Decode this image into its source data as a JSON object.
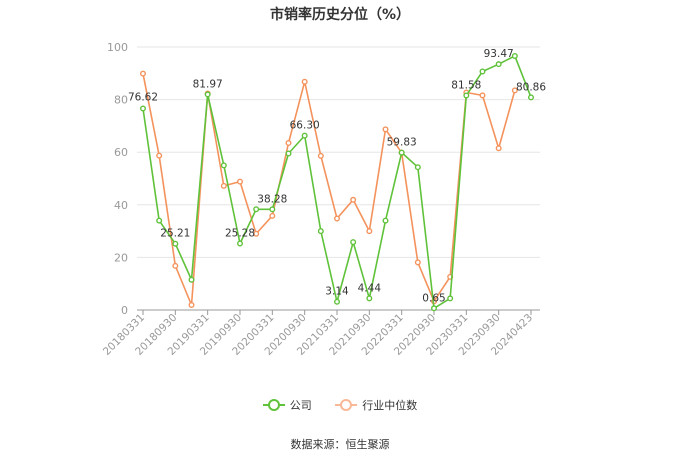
{
  "chart_data": {
    "type": "line",
    "title": "市销率历史分位（%）",
    "ylim": [
      0,
      100
    ],
    "y_ticks": [
      "0",
      "20",
      "40",
      "60",
      "80",
      "100"
    ],
    "x_tick_labels": [
      "20180331",
      "20180930",
      "20190331",
      "20190930",
      "20200331",
      "20200930",
      "20210331",
      "20210930",
      "20220331",
      "20220930",
      "20230331",
      "20230930",
      "20240423"
    ],
    "grid": true,
    "legend_position": "bottom",
    "series": [
      {
        "name": "公司",
        "color": "#5fc23a",
        "points": [
          {
            "x": "20180331",
            "y": 76.62
          },
          {
            "x": "20180630",
            "y": 34.0
          },
          {
            "x": "20180930",
            "y": 25.21
          },
          {
            "x": "20181231",
            "y": 11.5
          },
          {
            "x": "20190331",
            "y": 81.97
          },
          {
            "x": "20190630",
            "y": 55.0
          },
          {
            "x": "20190930",
            "y": 25.28
          },
          {
            "x": "20191231",
            "y": 38.3
          },
          {
            "x": "20200331",
            "y": 38.28
          },
          {
            "x": "20200630",
            "y": 59.5
          },
          {
            "x": "20200930",
            "y": 66.3
          },
          {
            "x": "20201231",
            "y": 30.0
          },
          {
            "x": "20210331",
            "y": 3.14
          },
          {
            "x": "20210630",
            "y": 25.8
          },
          {
            "x": "20210930",
            "y": 4.44
          },
          {
            "x": "20211231",
            "y": 34.0
          },
          {
            "x": "20220331",
            "y": 59.83
          },
          {
            "x": "20220630",
            "y": 54.3
          },
          {
            "x": "20220930",
            "y": 0.65
          },
          {
            "x": "20221231",
            "y": 4.4
          },
          {
            "x": "20230331",
            "y": 81.58
          },
          {
            "x": "20230630",
            "y": 90.7
          },
          {
            "x": "20230930",
            "y": 93.47
          },
          {
            "x": "20231231",
            "y": 96.6
          },
          {
            "x": "20240423",
            "y": 80.86
          }
        ]
      },
      {
        "name": "行业中位数",
        "color": "#f4925c",
        "points": [
          {
            "x": "20180331",
            "y": 89.9
          },
          {
            "x": "20180630",
            "y": 58.7
          },
          {
            "x": "20180930",
            "y": 16.8
          },
          {
            "x": "20181231",
            "y": 1.9
          },
          {
            "x": "20190331",
            "y": 82.3
          },
          {
            "x": "20190630",
            "y": 47.2
          },
          {
            "x": "20190930",
            "y": 48.8
          },
          {
            "x": "20191231",
            "y": 29.0
          },
          {
            "x": "20200331",
            "y": 35.8
          },
          {
            "x": "20200630",
            "y": 63.5
          },
          {
            "x": "20200930",
            "y": 86.8
          },
          {
            "x": "20201231",
            "y": 58.6
          },
          {
            "x": "20210331",
            "y": 34.8
          },
          {
            "x": "20210630",
            "y": 41.9
          },
          {
            "x": "20210930",
            "y": 30.0
          },
          {
            "x": "20211231",
            "y": 68.7
          },
          {
            "x": "20220331",
            "y": 59.8
          },
          {
            "x": "20220630",
            "y": 18.1
          },
          {
            "x": "20220930",
            "y": 3.3
          },
          {
            "x": "20221231",
            "y": 12.6
          },
          {
            "x": "20230331",
            "y": 82.7
          },
          {
            "x": "20230630",
            "y": 81.6
          },
          {
            "x": "20230930",
            "y": 61.5
          },
          {
            "x": "20231231",
            "y": 83.5
          },
          {
            "x": "20240423",
            "y": null
          }
        ]
      }
    ],
    "data_labels": [
      {
        "series": 0,
        "x": "20180331",
        "text": "76.62",
        "pos": "below"
      },
      {
        "series": 0,
        "x": "20180930",
        "text": "25.21",
        "pos": "above"
      },
      {
        "series": 0,
        "x": "20190331",
        "text": "81.97",
        "pos": "above"
      },
      {
        "series": 0,
        "x": "20190930",
        "text": "25.28",
        "pos": "above"
      },
      {
        "series": 0,
        "x": "20200331",
        "text": "38.28",
        "pos": "above"
      },
      {
        "series": 0,
        "x": "20200930",
        "text": "66.30",
        "pos": "above"
      },
      {
        "series": 0,
        "x": "20210331",
        "text": "3.14",
        "pos": "above"
      },
      {
        "series": 0,
        "x": "20210930",
        "text": "4.44",
        "pos": "above"
      },
      {
        "series": 0,
        "x": "20220331",
        "text": "59.83",
        "pos": "above"
      },
      {
        "series": 0,
        "x": "20220930",
        "text": "0.65",
        "pos": "above"
      },
      {
        "series": 0,
        "x": "20230331",
        "text": "81.58",
        "pos": "above"
      },
      {
        "series": 0,
        "x": "20230930",
        "text": "93.47",
        "pos": "above"
      },
      {
        "series": 0,
        "x": "20240423",
        "text": "80.86",
        "pos": "above"
      }
    ]
  },
  "legend": {
    "company_label": "公司",
    "industry_label": "行业中位数"
  },
  "footer": {
    "source_text": "数据来源：恒生聚源"
  }
}
